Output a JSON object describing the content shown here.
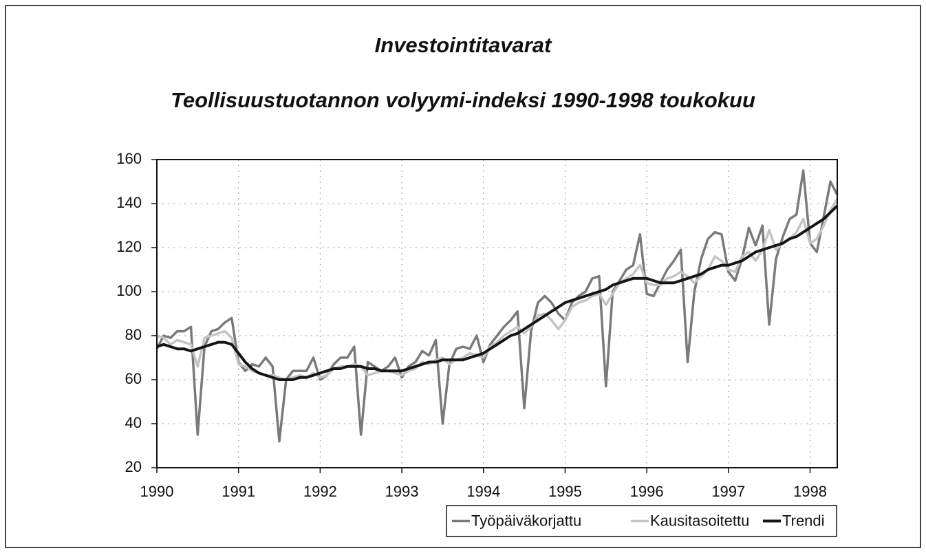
{
  "chart_data": {
    "type": "line",
    "title": "Investointitavarat",
    "subtitle": "Teollisuustuotannon volyymi-indeksi 1990-1998 toukokuu",
    "x": [
      1990,
      1990.083,
      1990.167,
      1990.25,
      1990.333,
      1990.417,
      1990.5,
      1990.583,
      1990.667,
      1990.75,
      1990.833,
      1990.917,
      1991,
      1991.083,
      1991.167,
      1991.25,
      1991.333,
      1991.417,
      1991.5,
      1991.583,
      1991.667,
      1991.75,
      1991.833,
      1991.917,
      1992,
      1992.083,
      1992.167,
      1992.25,
      1992.333,
      1992.417,
      1992.5,
      1992.583,
      1992.667,
      1992.75,
      1992.833,
      1992.917,
      1993,
      1993.083,
      1993.167,
      1993.25,
      1993.333,
      1993.417,
      1993.5,
      1993.583,
      1993.667,
      1993.75,
      1993.833,
      1993.917,
      1994,
      1994.083,
      1994.167,
      1994.25,
      1994.333,
      1994.417,
      1994.5,
      1994.583,
      1994.667,
      1994.75,
      1994.833,
      1994.917,
      1995,
      1995.083,
      1995.167,
      1995.25,
      1995.333,
      1995.417,
      1995.5,
      1995.583,
      1995.667,
      1995.75,
      1995.833,
      1995.917,
      1996,
      1996.083,
      1996.167,
      1996.25,
      1996.333,
      1996.417,
      1996.5,
      1996.583,
      1996.667,
      1996.75,
      1996.833,
      1996.917,
      1997,
      1997.083,
      1997.167,
      1997.25,
      1997.333,
      1997.417,
      1997.5,
      1997.583,
      1997.667,
      1997.75,
      1997.833,
      1997.917,
      1998,
      1998.083,
      1998.167,
      1998.25,
      1998.333
    ],
    "series": [
      {
        "name": "Työpäiväkorjattu",
        "color": "#7a7a7a",
        "width": 3.5,
        "values": [
          74,
          80,
          79,
          82,
          82,
          84,
          35,
          75,
          82,
          83,
          86,
          88,
          68,
          64,
          67,
          66,
          70,
          66,
          32,
          60,
          64,
          64,
          64,
          70,
          60,
          62,
          67,
          70,
          70,
          75,
          35,
          68,
          66,
          64,
          66,
          70,
          61,
          66,
          68,
          73,
          71,
          78,
          40,
          67,
          74,
          75,
          74,
          80,
          68,
          76,
          80,
          84,
          87,
          91,
          47,
          82,
          95,
          98,
          95,
          90,
          87,
          95,
          98,
          100,
          106,
          107,
          57,
          100,
          105,
          110,
          112,
          126,
          99,
          98,
          104,
          110,
          114,
          119,
          68,
          100,
          115,
          124,
          127,
          126,
          109,
          105,
          115,
          129,
          121,
          130,
          85,
          115,
          125,
          133,
          135,
          155,
          122,
          118,
          134,
          150,
          144
        ]
      },
      {
        "name": "Kausitasoitettu",
        "color": "#c4c4c4",
        "width": 3.5,
        "values": [
          80,
          79,
          76,
          78,
          77,
          76,
          66,
          79,
          80,
          81,
          82,
          79,
          67,
          66,
          64,
          63,
          62,
          62,
          61,
          60,
          61,
          62,
          61,
          63,
          61,
          62,
          65,
          66,
          66,
          67,
          66,
          62,
          63,
          64,
          64,
          63,
          62,
          64,
          65,
          68,
          67,
          69,
          70,
          67,
          69,
          70,
          72,
          71,
          70,
          75,
          77,
          80,
          82,
          84,
          81,
          84,
          89,
          90,
          87,
          83,
          87,
          93,
          95,
          96,
          98,
          99,
          94,
          99,
          104,
          106,
          108,
          112,
          104,
          103,
          103,
          106,
          107,
          109,
          107,
          104,
          107,
          110,
          116,
          114,
          110,
          109,
          116,
          118,
          114,
          119,
          128,
          119,
          122,
          124,
          127,
          133,
          122,
          124,
          130,
          137,
          142
        ]
      },
      {
        "name": "Trendi",
        "color": "#151515",
        "width": 4,
        "values": [
          75,
          76,
          75,
          74,
          74,
          73,
          74,
          75,
          76,
          77,
          77,
          76,
          72,
          68,
          65,
          63,
          62,
          61,
          60,
          60,
          60,
          61,
          61,
          62,
          63,
          64,
          65,
          65,
          66,
          66,
          66,
          65,
          65,
          64,
          64,
          64,
          64,
          65,
          66,
          67,
          68,
          68,
          69,
          69,
          69,
          69,
          70,
          71,
          72,
          74,
          76,
          78,
          80,
          81,
          83,
          85,
          87,
          89,
          91,
          93,
          95,
          96,
          97,
          98,
          99,
          100,
          101,
          103,
          104,
          105,
          106,
          106,
          106,
          105,
          104,
          104,
          104,
          105,
          106,
          107,
          108,
          110,
          111,
          112,
          112,
          113,
          114,
          116,
          118,
          119,
          120,
          121,
          122,
          124,
          125,
          127,
          129,
          131,
          133,
          136,
          139
        ]
      }
    ],
    "xlim": [
      1990,
      1998.333
    ],
    "xticks": [
      1990,
      1991,
      1992,
      1993,
      1994,
      1995,
      1996,
      1997,
      1998
    ],
    "ylim": [
      20,
      160
    ],
    "yticks": [
      20,
      40,
      60,
      80,
      100,
      120,
      140,
      160
    ],
    "grid": true,
    "legend": "bottom-right"
  }
}
